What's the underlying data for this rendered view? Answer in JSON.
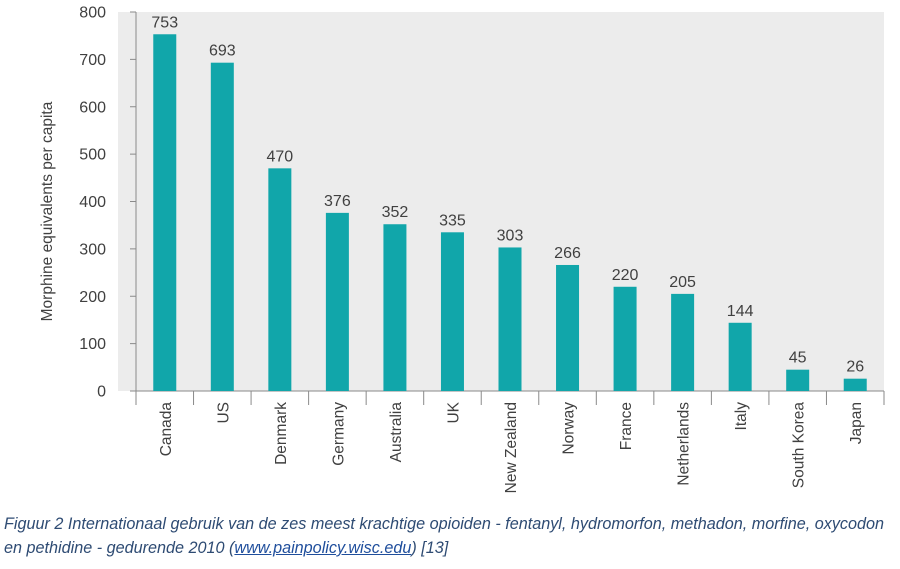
{
  "chart_data": {
    "type": "bar",
    "title": "",
    "xlabel": "",
    "ylabel": "Morphine equivalents per capita",
    "ylim": [
      0,
      800
    ],
    "yticks": [
      0,
      100,
      200,
      300,
      400,
      500,
      600,
      700,
      800
    ],
    "grid": false,
    "categories": [
      "Canada",
      "US",
      "Denmark",
      "Germany",
      "Australia",
      "UK",
      "New Zealand",
      "Norway",
      "France",
      "Netherlands",
      "Italy",
      "South Korea",
      "Japan"
    ],
    "values": [
      753,
      693,
      470,
      376,
      352,
      335,
      303,
      266,
      220,
      205,
      144,
      45,
      26
    ],
    "data_labels": [
      "753",
      "693",
      "470",
      "376",
      "352",
      "335",
      "303",
      "266",
      "220",
      "205",
      "144",
      "45",
      "26"
    ],
    "colors": {
      "bar": "#11a6aa",
      "plot_background": "#ececec",
      "axis": "#8a8a8a",
      "text": "#404040"
    }
  },
  "caption": {
    "before_link": "Figuur 2 Internationaal gebruik van de zes meest krachtige opioiden - fentanyl, hydromorfon, methadon, morfine, oxycodon en pethidine - gedurende 2010 (",
    "link_text": "www.painpolicy.wisc.edu",
    "after_link": ") [13]"
  }
}
